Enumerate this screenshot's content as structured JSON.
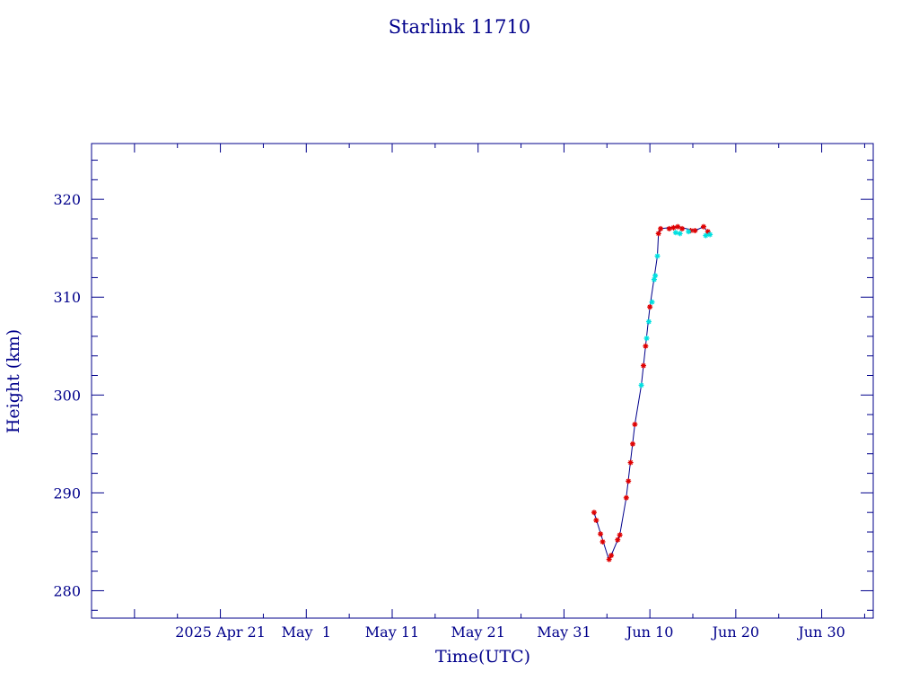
{
  "chart_data": {
    "type": "scatter",
    "title": "Starlink 11710",
    "xlabel": "Time(UTC)",
    "ylabel": "Height (km)",
    "x_axis": {
      "type": "date",
      "range": [
        "2025-04-06",
        "2025-07-06"
      ],
      "tick_labels": [
        {
          "date": "2025-04-21",
          "label": "2025 Apr 21"
        },
        {
          "date": "2025-05-01",
          "label": "May  1"
        },
        {
          "date": "2025-05-11",
          "label": "May 11"
        },
        {
          "date": "2025-05-21",
          "label": "May 21"
        },
        {
          "date": "2025-05-31",
          "label": "May 31"
        },
        {
          "date": "2025-06-10",
          "label": "Jun 10"
        },
        {
          "date": "2025-06-20",
          "label": "Jun 20"
        },
        {
          "date": "2025-06-30",
          "label": "Jun 30"
        }
      ]
    },
    "y_axis": {
      "range": [
        277.2,
        325.7
      ],
      "ticks": [
        280,
        290,
        300,
        310,
        320
      ]
    },
    "series": [
      {
        "marker": "asterisk",
        "color": "#e00000",
        "points": [
          [
            "2025-06-03T12:00",
            288.0
          ],
          [
            "2025-06-03T18:00",
            287.2
          ],
          [
            "2025-06-04T06:00",
            285.8
          ],
          [
            "2025-06-04T12:00",
            285.0
          ],
          [
            "2025-06-05T06:00",
            283.2
          ],
          [
            "2025-06-05T12:00",
            283.6
          ],
          [
            "2025-06-06T06:00",
            285.2
          ],
          [
            "2025-06-06T12:00",
            285.7
          ],
          [
            "2025-06-07T06:00",
            289.5
          ],
          [
            "2025-06-07T12:00",
            291.2
          ],
          [
            "2025-06-07T18:00",
            293.1
          ],
          [
            "2025-06-08T00:00",
            295.0
          ],
          [
            "2025-06-08T06:00",
            297.0
          ],
          [
            "2025-06-09T06:00",
            303.0
          ],
          [
            "2025-06-09T12:00",
            305.0
          ],
          [
            "2025-06-10T00:00",
            309.0
          ],
          [
            "2025-06-11T00:00",
            316.5
          ],
          [
            "2025-06-11T06:00",
            317.0
          ],
          [
            "2025-06-12T06:00",
            317.0
          ],
          [
            "2025-06-12T18:00",
            317.1
          ],
          [
            "2025-06-13T06:00",
            317.2
          ],
          [
            "2025-06-13T18:00",
            317.0
          ],
          [
            "2025-06-14T18:00",
            316.8
          ],
          [
            "2025-06-15T06:00",
            316.8
          ],
          [
            "2025-06-16T06:00",
            317.2
          ],
          [
            "2025-06-16T18:00",
            316.7
          ]
        ]
      },
      {
        "marker": "asterisk",
        "color": "#00e0e0",
        "points": [
          [
            "2025-06-09T00:00",
            301.0
          ],
          [
            "2025-06-09T15:00",
            305.8
          ],
          [
            "2025-06-09T21:00",
            307.5
          ],
          [
            "2025-06-10T06:00",
            309.5
          ],
          [
            "2025-06-10T12:00",
            311.8
          ],
          [
            "2025-06-10T15:00",
            312.2
          ],
          [
            "2025-06-10T21:00",
            314.2
          ],
          [
            "2025-06-13T00:00",
            316.6
          ],
          [
            "2025-06-13T12:00",
            316.5
          ],
          [
            "2025-06-14T12:00",
            316.7
          ],
          [
            "2025-06-16T12:00",
            316.3
          ],
          [
            "2025-06-17T00:00",
            316.4
          ]
        ]
      }
    ],
    "trend_line": {
      "color": "#00008b",
      "points": [
        [
          "2025-06-03T12:00",
          288.0
        ],
        [
          "2025-06-05T06:00",
          283.1
        ],
        [
          "2025-06-06T12:00",
          285.7
        ],
        [
          "2025-06-07T06:00",
          289.5
        ],
        [
          "2025-06-08T06:00",
          297.0
        ],
        [
          "2025-06-09T00:00",
          301.0
        ],
        [
          "2025-06-10T00:00",
          309.0
        ],
        [
          "2025-06-10T21:00",
          314.2
        ],
        [
          "2025-06-11T00:00",
          316.5
        ],
        [
          "2025-06-11T06:00",
          317.0
        ],
        [
          "2025-06-13T06:00",
          317.2
        ],
        [
          "2025-06-15T06:00",
          316.8
        ],
        [
          "2025-06-16T06:00",
          317.2
        ],
        [
          "2025-06-17T00:00",
          316.4
        ]
      ]
    },
    "grid": false,
    "legend": "none",
    "frame_color": "#00008b"
  }
}
